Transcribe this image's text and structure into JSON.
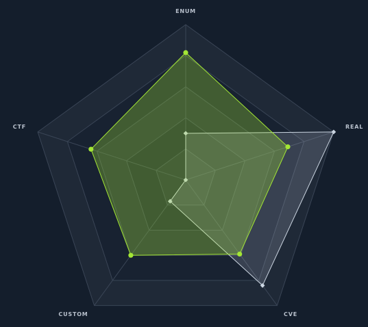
{
  "colors": {
    "background": "#141e2c",
    "grid_band_light": "#1f2937",
    "grid_band_dark": "#182231",
    "grid_line": "#3a4556",
    "series_green": "#a3e635",
    "series_gray": "#cbd5e1"
  },
  "chart_data": {
    "type": "radar",
    "axes": [
      "ENUM",
      "REAL",
      "CVE",
      "CUSTOM",
      "CTF"
    ],
    "range": [
      0,
      1
    ],
    "grid_levels": [
      0.2,
      0.4,
      0.6,
      0.8,
      1.0
    ],
    "grid": true,
    "legend": "none",
    "series": [
      {
        "values": [
          0.82,
          0.69,
          0.59,
          0.6,
          0.64
        ],
        "color": "#a3e635",
        "fill_opacity": 0.3,
        "marker": "circle"
      },
      {
        "values": [
          0.3,
          1.0,
          0.84,
          0.17,
          0.0
        ],
        "color": "#cbd5e1",
        "fill_opacity": 0.18,
        "marker": "diamond"
      }
    ]
  }
}
